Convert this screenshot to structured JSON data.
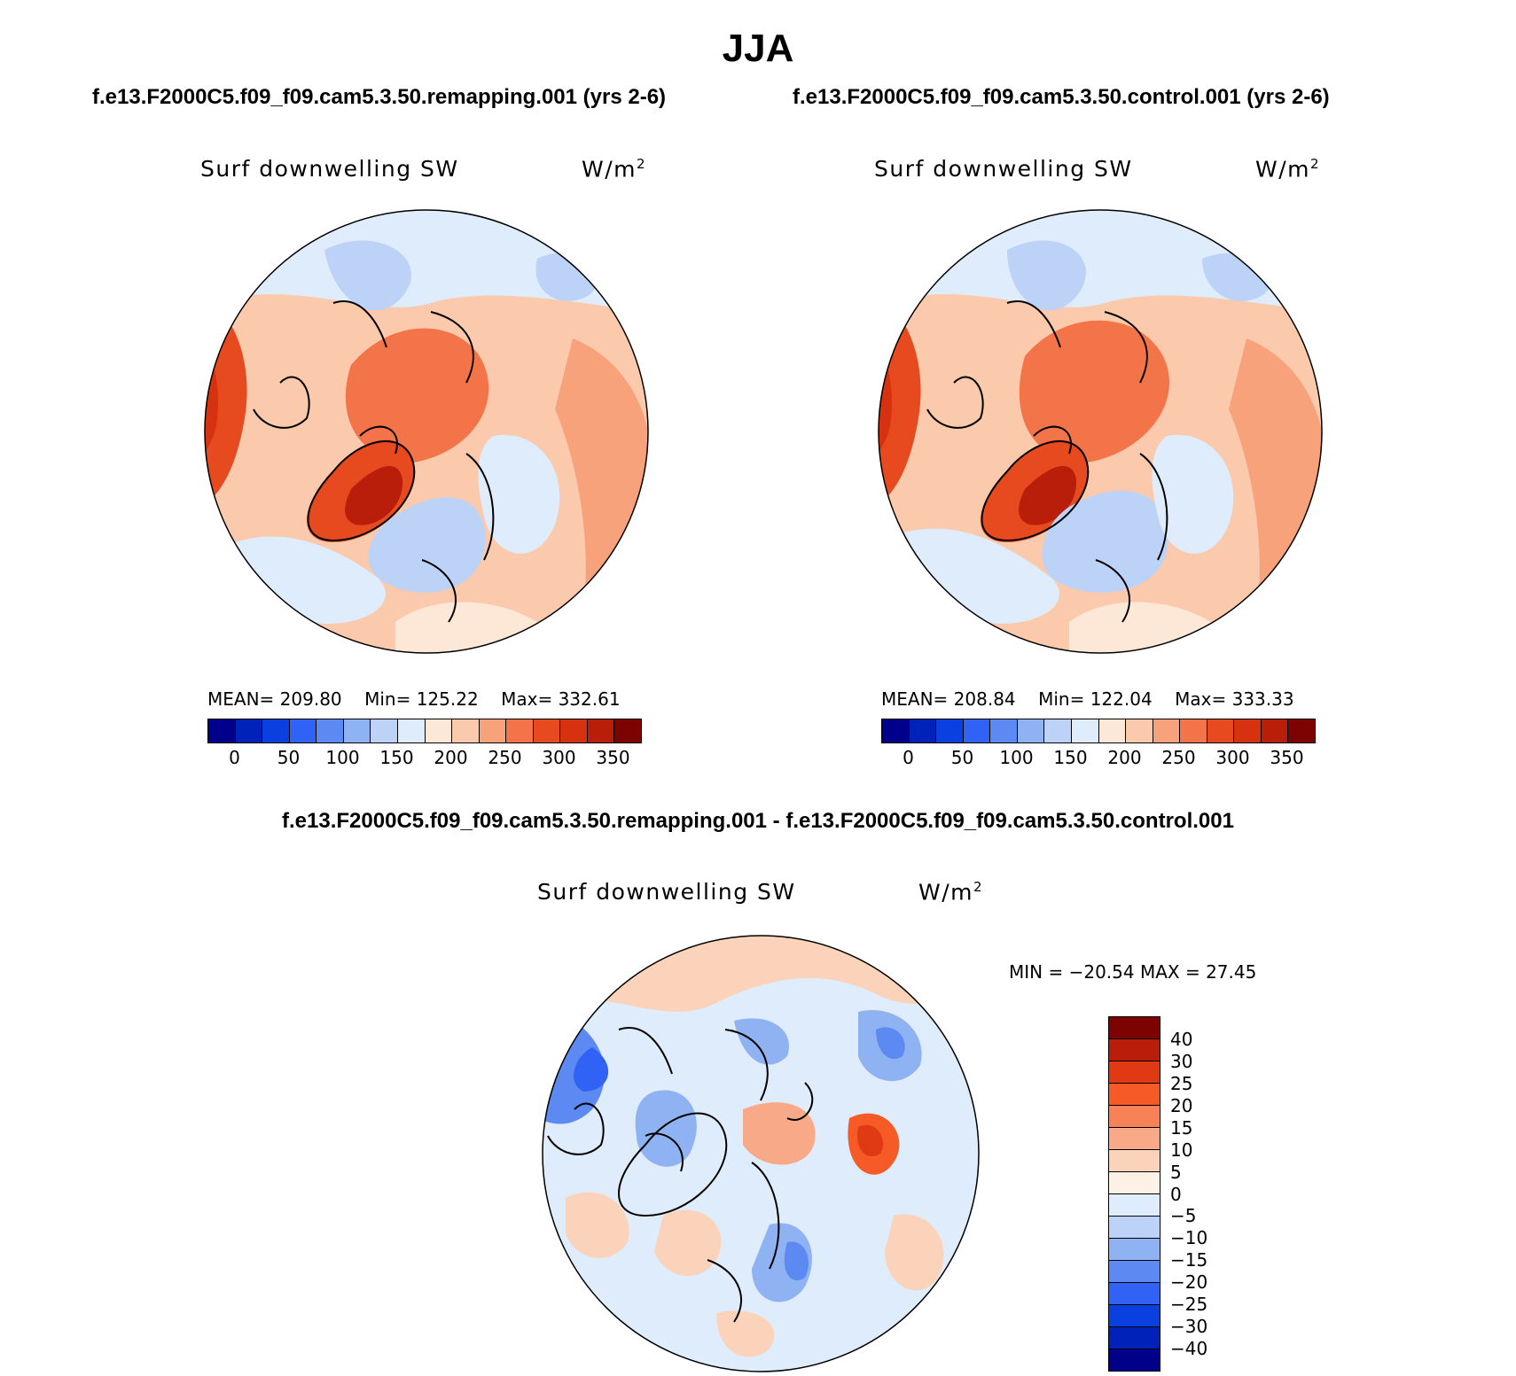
{
  "title": "JJA",
  "panels": [
    {
      "case_title": "f.e13.F2000C5.f09_f09.cam5.3.50.remapping.001 (yrs 2-6)",
      "variable": "Surf downwelling SW",
      "units_base": "W/m",
      "units_exp": "2",
      "stats": {
        "mean_label": "MEAN=",
        "mean": "209.80",
        "min_label": "Min=",
        "min": "125.22",
        "max_label": "Max=",
        "max": "332.61"
      }
    },
    {
      "case_title": "f.e13.F2000C5.f09_f09.cam5.3.50.control.001 (yrs 2-6)",
      "variable": "Surf downwelling SW",
      "units_base": "W/m",
      "units_exp": "2",
      "stats": {
        "mean_label": "MEAN=",
        "mean": "208.84",
        "min_label": "Min=",
        "min": "122.04",
        "max_label": "Max=",
        "max": "333.33"
      }
    }
  ],
  "diff_panel": {
    "title": "f.e13.F2000C5.f09_f09.cam5.3.50.remapping.001 - f.e13.F2000C5.f09_f09.cam5.3.50.control.001",
    "variable": "Surf downwelling SW",
    "units_base": "W/m",
    "units_exp": "2",
    "minmax": "MIN = −20.54 MAX =   27.45"
  },
  "abs_colorbar": {
    "colors": [
      "#00008b",
      "#0022b8",
      "#0a3fe0",
      "#2f62f5",
      "#5d8af2",
      "#8fb2f2",
      "#bcd3f7",
      "#dfecfb",
      "#fde8d8",
      "#fbc9ab",
      "#f8a27c",
      "#f27448",
      "#e84a1f",
      "#d63210",
      "#b81e0a",
      "#7d0303"
    ],
    "ticks": [
      "0",
      "50",
      "100",
      "150",
      "200",
      "250",
      "300",
      "350"
    ]
  },
  "diff_colorbar": {
    "colors": [
      "#7d0303",
      "#b81e0a",
      "#e03a15",
      "#f65a26",
      "#f88258",
      "#f8a987",
      "#fbd3bb",
      "#fdf0e4",
      "#dfecfb",
      "#bcd3f7",
      "#8fb2f2",
      "#5d8af2",
      "#2f62f5",
      "#0a3fe0",
      "#0022b8",
      "#00008b"
    ],
    "ticks": [
      "40",
      "30",
      "25",
      "20",
      "15",
      "10",
      "5",
      "0",
      "−5",
      "−10",
      "−15",
      "−20",
      "−25",
      "−30",
      "−40"
    ]
  }
}
